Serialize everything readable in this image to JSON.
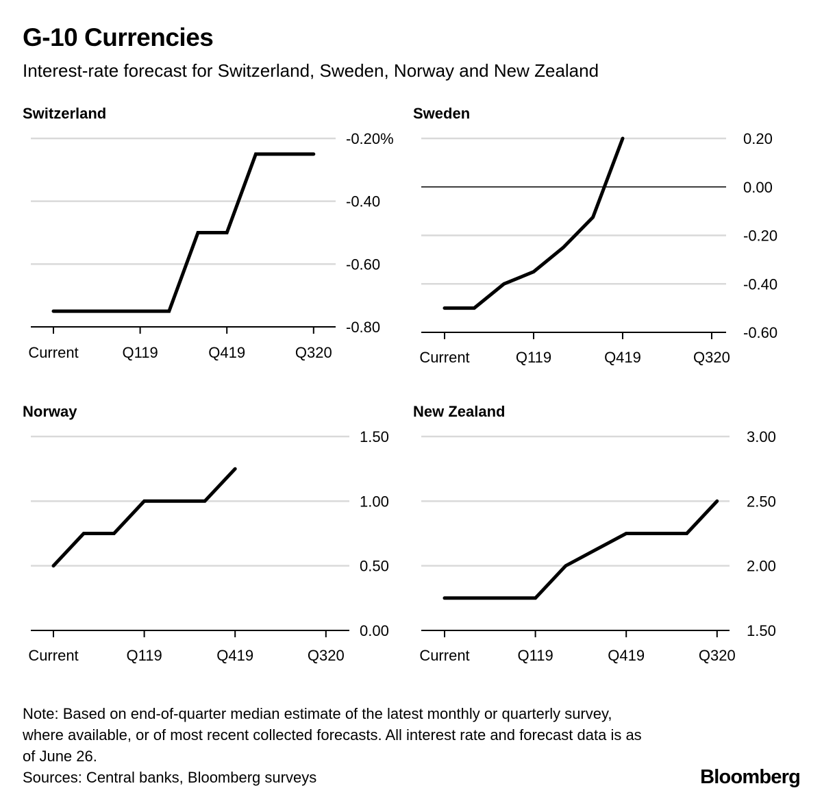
{
  "title": "G-10 Currencies",
  "subtitle": "Interest-rate forecast for Switzerland, Sweden, Norway and New Zealand",
  "note_lines": [
    "Note: Based on end-of-quarter median estimate of the latest monthly or quarterly survey, where available, or of most recent collected forecasts. All interest rate and forecast data is as of June 26.",
    "Sources: Central banks, Bloomberg surveys"
  ],
  "logo": "Bloomberg",
  "colors": {
    "line": "#000000",
    "grid": "#d9d9d9",
    "axis": "#000000"
  },
  "chart_data": [
    {
      "type": "line",
      "title": "Switzerland",
      "x_tick_labels": [
        "Current",
        "Q119",
        "Q419",
        "Q320"
      ],
      "x_tick_index": [
        0,
        3,
        6,
        9
      ],
      "values": [
        -0.75,
        -0.75,
        -0.75,
        -0.75,
        -0.75,
        -0.5,
        -0.5,
        -0.25,
        -0.25,
        -0.25
      ],
      "yticks": [
        -0.2,
        -0.4,
        -0.6,
        -0.8
      ],
      "ytick_labels": [
        "-0.20%",
        "-0.40",
        "-0.60",
        "-0.80"
      ],
      "ylim": [
        -0.8,
        -0.2
      ],
      "grid": true,
      "zero_line": false
    },
    {
      "type": "line",
      "title": "Sweden",
      "x_tick_labels": [
        "Current",
        "Q119",
        "Q419",
        "Q320"
      ],
      "x_tick_index": [
        0,
        3,
        6,
        9
      ],
      "values": [
        -0.5,
        -0.5,
        -0.4,
        -0.35,
        -0.25,
        -0.125,
        0.2
      ],
      "yticks": [
        0.2,
        0.0,
        -0.2,
        -0.4,
        -0.6
      ],
      "ytick_labels": [
        "0.20",
        "0.00",
        "-0.20",
        "-0.40",
        "-0.60"
      ],
      "ylim": [
        -0.6,
        0.2
      ],
      "grid": true,
      "zero_line": true
    },
    {
      "type": "line",
      "title": "Norway",
      "x_tick_labels": [
        "Current",
        "Q119",
        "Q419",
        "Q320"
      ],
      "x_tick_index": [
        0,
        3,
        6,
        9
      ],
      "values": [
        0.5,
        0.75,
        0.75,
        1.0,
        1.0,
        1.0,
        1.25
      ],
      "yticks": [
        1.5,
        1.0,
        0.5,
        0.0
      ],
      "ytick_labels": [
        "1.50",
        "1.00",
        "0.50",
        "0.00"
      ],
      "ylim": [
        0,
        1.5
      ],
      "grid": true,
      "zero_line": false
    },
    {
      "type": "line",
      "title": "New Zealand",
      "x_tick_labels": [
        "Current",
        "Q119",
        "Q419",
        "Q320"
      ],
      "x_tick_index": [
        0,
        3,
        6,
        9
      ],
      "values": [
        1.75,
        1.75,
        1.75,
        1.75,
        2.0,
        2.125,
        2.25,
        2.25,
        2.25,
        2.5
      ],
      "yticks": [
        3.0,
        2.5,
        2.0,
        1.5
      ],
      "ytick_labels": [
        "3.00",
        "2.50",
        "2.00",
        "1.50"
      ],
      "ylim": [
        1.5,
        3.0
      ],
      "grid": true,
      "zero_line": false
    }
  ]
}
